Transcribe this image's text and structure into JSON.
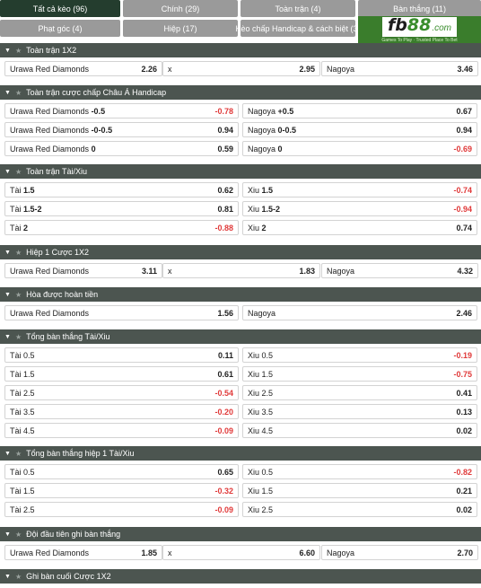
{
  "tabs": [
    {
      "label": "Tất cả kèo (96)",
      "active": true
    },
    {
      "label": "Chính (29)",
      "active": false
    },
    {
      "label": "Toàn trận (4)",
      "active": false
    },
    {
      "label": "Bàn thắng (11)",
      "active": false
    },
    {
      "label": "Phạt góc (4)",
      "active": false
    },
    {
      "label": "Hiệp (17)",
      "active": false
    },
    {
      "label": "Kèo chấp Handicap & cách biệt (3)",
      "active": false
    }
  ],
  "logo": {
    "fb": "fb",
    "num": "88",
    "dot": ".com",
    "tagline": "Games To Play · Trusted Place To Bet"
  },
  "sections": [
    {
      "title": "Toàn trận 1X2",
      "rows": [
        [
          {
            "name": "Urawa Red Diamonds",
            "odd": "2.26"
          },
          {
            "name": "x",
            "odd": "2.95"
          },
          {
            "name": "Nagoya",
            "odd": "3.46"
          }
        ]
      ]
    },
    {
      "title": "Toàn trận cược chấp Châu Á Handicap",
      "rows": [
        [
          {
            "name": "Urawa Red Diamonds",
            "line": "-0.5",
            "odd": "-0.78"
          },
          {
            "name": "Nagoya",
            "line": "+0.5",
            "odd": "0.67"
          }
        ],
        [
          {
            "name": "Urawa Red Diamonds",
            "line": "-0-0.5",
            "odd": "0.94"
          },
          {
            "name": "Nagoya",
            "line": "0-0.5",
            "odd": "0.94"
          }
        ],
        [
          {
            "name": "Urawa Red Diamonds",
            "line": "0",
            "odd": "0.59"
          },
          {
            "name": "Nagoya",
            "line": "0",
            "odd": "-0.69"
          }
        ]
      ]
    },
    {
      "title": "Toàn trận Tài/Xiu",
      "rows": [
        [
          {
            "name": "Tài",
            "line": "1.5",
            "odd": "0.62"
          },
          {
            "name": "Xiu",
            "line": "1.5",
            "odd": "-0.74"
          }
        ],
        [
          {
            "name": "Tài",
            "line": "1.5-2",
            "odd": "0.81"
          },
          {
            "name": "Xiu",
            "line": "1.5-2",
            "odd": "-0.94"
          }
        ],
        [
          {
            "name": "Tài",
            "line": "2",
            "odd": "-0.88"
          },
          {
            "name": "Xiu",
            "line": "2",
            "odd": "0.74"
          }
        ]
      ]
    },
    {
      "title": "Hiệp 1 Cược 1X2",
      "rows": [
        [
          {
            "name": "Urawa Red Diamonds",
            "odd": "3.11"
          },
          {
            "name": "x",
            "odd": "1.83"
          },
          {
            "name": "Nagoya",
            "odd": "4.32"
          }
        ]
      ]
    },
    {
      "title": "Hòa được hoàn tiền",
      "rows": [
        [
          {
            "name": "Urawa Red Diamonds",
            "odd": "1.56"
          },
          {
            "name": "Nagoya",
            "odd": "2.46"
          }
        ]
      ]
    },
    {
      "title": "Tổng bàn thắng Tài/Xiu",
      "rows": [
        [
          {
            "name": "Tài 0.5",
            "odd": "0.11"
          },
          {
            "name": "Xiu 0.5",
            "odd": "-0.19"
          }
        ],
        [
          {
            "name": "Tài 1.5",
            "odd": "0.61"
          },
          {
            "name": "Xiu 1.5",
            "odd": "-0.75"
          }
        ],
        [
          {
            "name": "Tài 2.5",
            "odd": "-0.54"
          },
          {
            "name": "Xiu 2.5",
            "odd": "0.41"
          }
        ],
        [
          {
            "name": "Tài 3.5",
            "odd": "-0.20"
          },
          {
            "name": "Xiu 3.5",
            "odd": "0.13"
          }
        ],
        [
          {
            "name": "Tài 4.5",
            "odd": "-0.09"
          },
          {
            "name": "Xiu 4.5",
            "odd": "0.02"
          }
        ]
      ]
    },
    {
      "title": "Tổng bàn thắng hiệp 1 Tài/Xiu",
      "rows": [
        [
          {
            "name": "Tài 0.5",
            "odd": "0.65"
          },
          {
            "name": "Xiu 0.5",
            "odd": "-0.82"
          }
        ],
        [
          {
            "name": "Tài 1.5",
            "odd": "-0.32"
          },
          {
            "name": "Xiu 1.5",
            "odd": "0.21"
          }
        ],
        [
          {
            "name": "Tài 2.5",
            "odd": "-0.09"
          },
          {
            "name": "Xiu 2.5",
            "odd": "0.02"
          }
        ]
      ]
    },
    {
      "title": "Đội đầu tiên ghi bàn thắng",
      "rows": [
        [
          {
            "name": "Urawa Red Diamonds",
            "odd": "1.85"
          },
          {
            "name": "x",
            "odd": "6.60"
          },
          {
            "name": "Nagoya",
            "odd": "2.70"
          }
        ]
      ]
    },
    {
      "title": "Ghi bàn cuối Cược 1X2",
      "rows": []
    }
  ]
}
